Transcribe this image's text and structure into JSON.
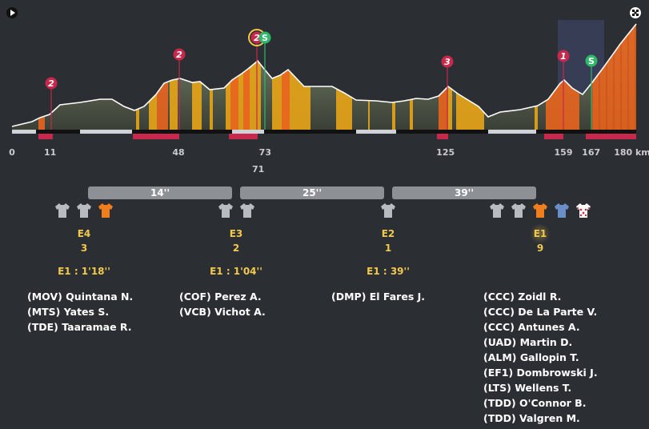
{
  "profile": {
    "km_max": 180,
    "km_markers": [
      {
        "km": 0,
        "label": "0"
      },
      {
        "km": 11,
        "label": "11"
      },
      {
        "km": 48,
        "label": "48"
      },
      {
        "km": 73,
        "label": "73"
      },
      {
        "km": 125,
        "label": "125"
      },
      {
        "km": 159,
        "label": "159"
      },
      {
        "km": 167,
        "label": "167"
      },
      {
        "km": 180,
        "label": "180 km"
      }
    ],
    "rider_km_label": "71",
    "climbs": [
      {
        "km": 11,
        "label": "2"
      },
      {
        "km": 48,
        "label": "2"
      },
      {
        "km": 71,
        "label": "2"
      },
      {
        "km": 125,
        "label": "3"
      },
      {
        "km": 159,
        "label": "1"
      }
    ],
    "sprints": [
      {
        "km": 73,
        "label": "S"
      },
      {
        "km": 167,
        "label": "S"
      }
    ],
    "colors": {
      "climb": "#c8284b",
      "sprint": "#2fb86a",
      "steep": "#e8641e",
      "moderate": "#e8a417"
    }
  },
  "gaps": [
    {
      "label": "14''"
    },
    {
      "label": "25''"
    },
    {
      "label": "39''"
    }
  ],
  "groups": [
    {
      "name": "E4",
      "count": "3",
      "delta": "E1 : 1'18''",
      "jerseys": [
        "grey",
        "grey",
        "orange"
      ],
      "riders": [
        "(MOV) Quintana N.",
        "(MTS) Yates S.",
        "(TDE) Taaramae R."
      ]
    },
    {
      "name": "E3",
      "count": "2",
      "delta": "E1 : 1'04''",
      "jerseys": [
        "grey",
        "grey"
      ],
      "riders": [
        "(COF) Perez A.",
        "(VCB) Vichot A."
      ]
    },
    {
      "name": "E2",
      "count": "1",
      "delta": "E1 : 39''",
      "jerseys": [
        "grey"
      ],
      "riders": [
        "(DMP) El Fares J."
      ]
    },
    {
      "name": "E1",
      "count": "9",
      "delta": "",
      "jerseys": [
        "grey",
        "grey",
        "orange",
        "blue",
        "polka"
      ],
      "riders": [
        "(CCC) Zoidl R.",
        "(CCC) De La Parte V.",
        "(CCC) Antunes A.",
        "(UAD) Martin D.",
        "(ALM) Gallopin T.",
        "(EF1) Dombrowski J.",
        "(LTS) Wellens T.",
        "(TDD) O'Connor B.",
        "(TDD) Valgren M."
      ]
    }
  ]
}
